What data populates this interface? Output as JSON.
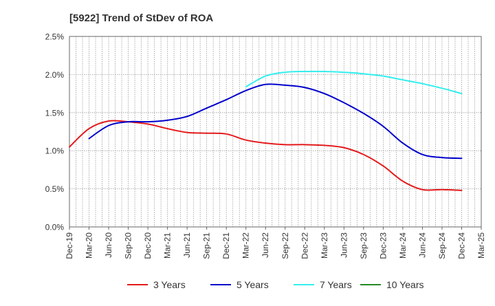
{
  "chart_data": {
    "type": "line",
    "title": "[5922]  Trend of StDev of ROA",
    "xlabel": "",
    "ylabel": "",
    "ylim": [
      0,
      2.5
    ],
    "yticks": [
      "0.0%",
      "0.5%",
      "1.0%",
      "1.5%",
      "2.0%",
      "2.5%"
    ],
    "ytick_values": [
      0,
      0.5,
      1.0,
      1.5,
      2.0,
      2.5
    ],
    "categories": [
      "Dec-19",
      "Mar-20",
      "Jun-20",
      "Sep-20",
      "Dec-20",
      "Mar-21",
      "Jun-21",
      "Sep-21",
      "Dec-21",
      "Mar-22",
      "Jun-22",
      "Sep-22",
      "Dec-22",
      "Mar-23",
      "Jun-23",
      "Sep-23",
      "Dec-23",
      "Mar-24",
      "Jun-24",
      "Sep-24",
      "Dec-24",
      "Mar-25"
    ],
    "grid": true,
    "legend_position": "bottom",
    "series": [
      {
        "name": "3 Years",
        "color": "#e41a1c",
        "values": [
          1.05,
          1.29,
          1.39,
          1.38,
          1.35,
          1.29,
          1.24,
          1.23,
          1.22,
          1.14,
          1.1,
          1.08,
          1.08,
          1.07,
          1.04,
          0.95,
          0.8,
          0.6,
          0.49,
          0.49,
          0.48,
          null
        ]
      },
      {
        "name": "5 Years",
        "color": "#0000cc",
        "values": [
          null,
          1.16,
          1.33,
          1.38,
          1.38,
          1.4,
          1.45,
          1.56,
          1.67,
          1.79,
          1.87,
          1.86,
          1.83,
          1.75,
          1.63,
          1.49,
          1.32,
          1.1,
          0.95,
          0.91,
          0.9,
          null
        ]
      },
      {
        "name": "7 Years",
        "color": "#33eeee",
        "values": [
          null,
          null,
          null,
          null,
          null,
          null,
          null,
          null,
          null,
          1.84,
          1.98,
          2.03,
          2.04,
          2.04,
          2.03,
          2.01,
          1.98,
          1.93,
          1.88,
          1.82,
          1.75,
          null
        ]
      },
      {
        "name": "10 Years",
        "color": "#228b22",
        "values": [
          null,
          null,
          null,
          null,
          null,
          null,
          null,
          null,
          null,
          null,
          null,
          null,
          null,
          null,
          null,
          null,
          null,
          null,
          null,
          null,
          null,
          null
        ]
      }
    ]
  }
}
